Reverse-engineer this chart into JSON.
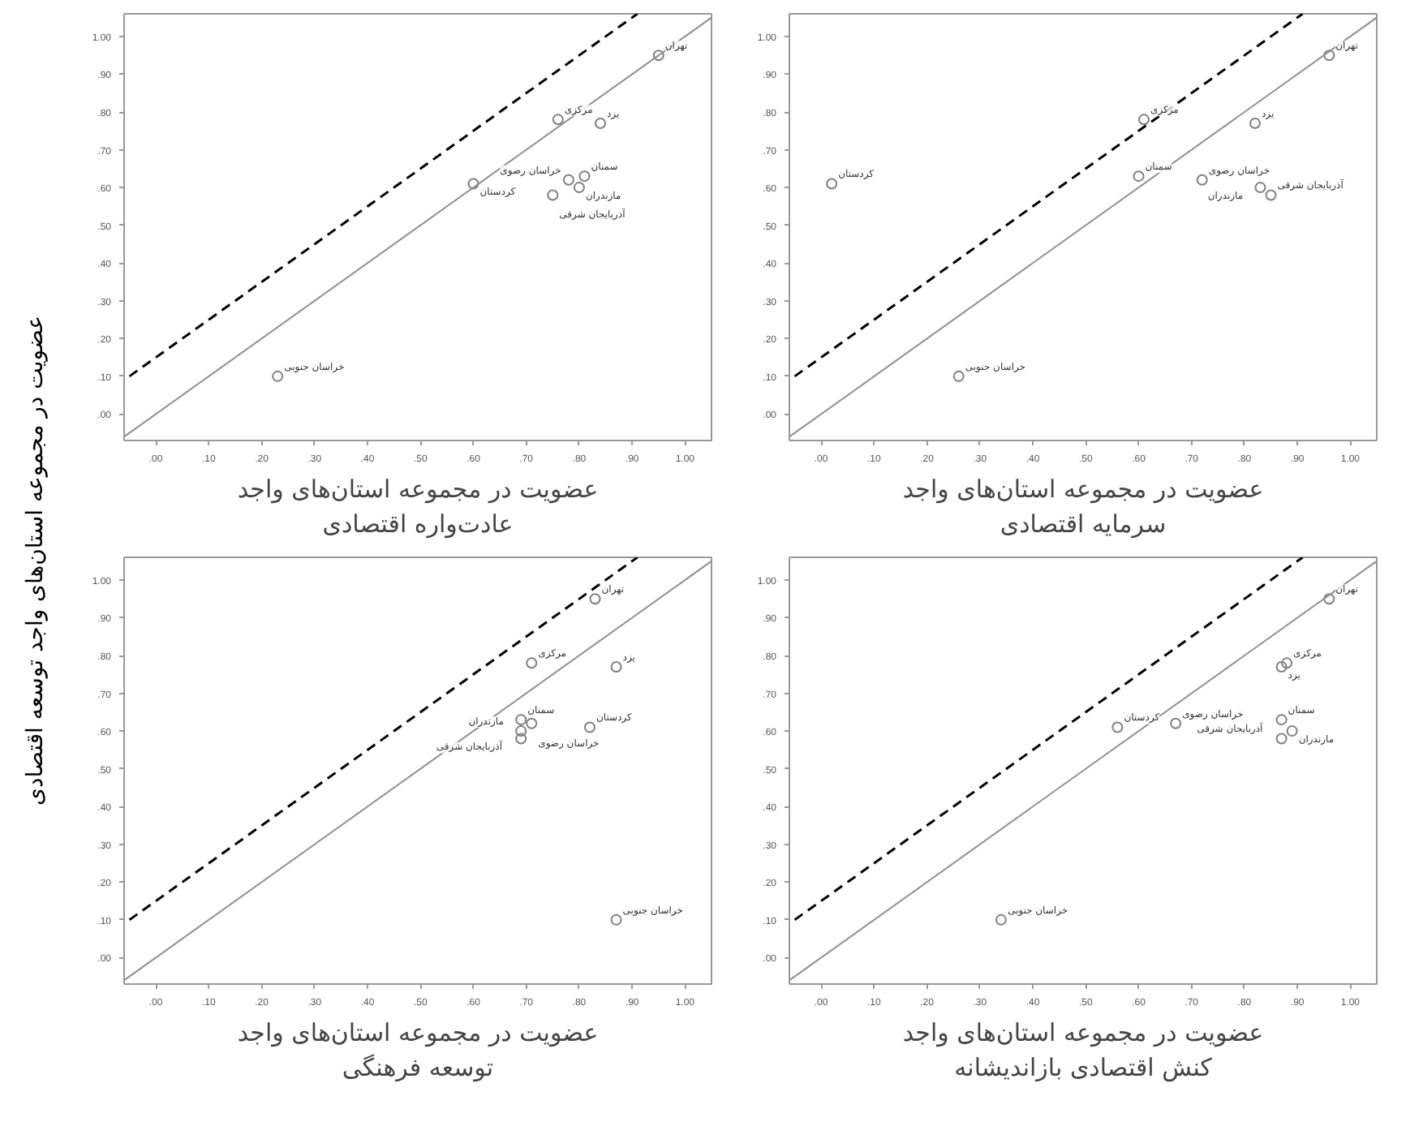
{
  "chart_data": [
    {
      "type": "scatter",
      "xlabel": "عضویت در مجموعه استان‌های واجد\nعادت‌واره اقتصادی",
      "ylabel": "عضویت در مجموعه استان‌های واجد توسعه اقتصادی",
      "xlim": [
        -0.06,
        1.05
      ],
      "ylim": [
        -0.07,
        1.06
      ],
      "marker": "circle",
      "grid": false,
      "xticks": [
        {
          "value": 0,
          "label": ".00"
        },
        {
          "value": 0.1,
          "label": ".10"
        },
        {
          "value": 0.2,
          "label": ".20"
        },
        {
          "value": 0.3,
          "label": ".30"
        },
        {
          "value": 0.4,
          "label": ".40"
        },
        {
          "value": 0.5,
          "label": ".50"
        },
        {
          "value": 0.6,
          "label": ".60"
        },
        {
          "value": 0.7,
          "label": ".70"
        },
        {
          "value": 0.8,
          "label": ".80"
        },
        {
          "value": 0.9,
          "label": ".90"
        },
        {
          "value": 1,
          "label": "1.00"
        }
      ],
      "yticks": [
        {
          "value": 0,
          "label": ".00"
        },
        {
          "value": 0.1,
          "label": ".10"
        },
        {
          "value": 0.2,
          "label": ".20"
        },
        {
          "value": 0.3,
          "label": ".30"
        },
        {
          "value": 0.4,
          "label": ".40"
        },
        {
          "value": 0.5,
          "label": ".50"
        },
        {
          "value": 0.6,
          "label": ".60"
        },
        {
          "value": 0.7,
          "label": ".70"
        },
        {
          "value": 0.8,
          "label": ".80"
        },
        {
          "value": 0.9,
          "label": ".90"
        },
        {
          "value": 1,
          "label": "1.00"
        }
      ],
      "series": [
        {
          "color": "#808080",
          "x": [
            0.95,
            0.76,
            0.84,
            0.81,
            0.78,
            0.6,
            0.8,
            0.75,
            0.23
          ],
          "values": [
            0.95,
            0.78,
            0.77,
            0.63,
            0.62,
            0.61,
            0.6,
            0.58,
            0.1
          ]
        },
        {
          "type": "line",
          "marker": "none",
          "color": "#909090",
          "line_style": "solid",
          "x": [
            -0.06,
            1.05
          ],
          "values": [
            -0.06,
            1.05
          ]
        },
        {
          "type": "line",
          "marker": "none",
          "color": "#000000",
          "line_style": "dashed",
          "x": [
            -0.05,
            0.91
          ],
          "values": [
            0.1,
            1.06
          ]
        }
      ],
      "annotations": [
        {
          "text": "تهران",
          "x": 0.95,
          "y": 0.95
        },
        {
          "text": "مرکزی",
          "x": 0.76,
          "y": 0.78
        },
        {
          "text": "یزد",
          "x": 0.84,
          "y": 0.77
        },
        {
          "text": "سمنان",
          "x": 0.81,
          "y": 0.63
        },
        {
          "text": "خراسان رضوی",
          "x": 0.78,
          "y": 0.62
        },
        {
          "text": "کردستان",
          "x": 0.6,
          "y": 0.61
        },
        {
          "text": "مازندران",
          "x": 0.8,
          "y": 0.6
        },
        {
          "text": "آذربایجان شرقی",
          "x": 0.75,
          "y": 0.58
        },
        {
          "text": "خراسان جنوبی",
          "x": 0.23,
          "y": 0.1
        }
      ]
    },
    {
      "type": "scatter",
      "xlabel": "عضویت در مجموعه استان‌های واجد\nسرمایه اقتصادی",
      "xlim": [
        -0.06,
        1.05
      ],
      "ylim": [
        -0.07,
        1.06
      ],
      "marker": "circle",
      "grid": false,
      "xticks": [
        {
          "value": 0,
          "label": ".00"
        },
        {
          "value": 0.1,
          "label": ".10"
        },
        {
          "value": 0.2,
          "label": ".20"
        },
        {
          "value": 0.3,
          "label": ".30"
        },
        {
          "value": 0.4,
          "label": ".40"
        },
        {
          "value": 0.5,
          "label": ".50"
        },
        {
          "value": 0.6,
          "label": ".60"
        },
        {
          "value": 0.7,
          "label": ".70"
        },
        {
          "value": 0.8,
          "label": ".80"
        },
        {
          "value": 0.9,
          "label": ".90"
        },
        {
          "value": 1,
          "label": "1.00"
        }
      ],
      "yticks": [
        {
          "value": 0,
          "label": ".00"
        },
        {
          "value": 0.1,
          "label": ".10"
        },
        {
          "value": 0.2,
          "label": ".20"
        },
        {
          "value": 0.3,
          "label": ".30"
        },
        {
          "value": 0.4,
          "label": ".40"
        },
        {
          "value": 0.5,
          "label": ".50"
        },
        {
          "value": 0.6,
          "label": ".60"
        },
        {
          "value": 0.7,
          "label": ".70"
        },
        {
          "value": 0.8,
          "label": ".80"
        },
        {
          "value": 0.9,
          "label": ".90"
        },
        {
          "value": 1,
          "label": "1.00"
        }
      ],
      "series": [
        {
          "color": "#808080",
          "x": [
            0.96,
            0.61,
            0.82,
            0.6,
            0.72,
            0.02,
            0.83,
            0.85,
            0.26
          ],
          "values": [
            0.95,
            0.78,
            0.77,
            0.63,
            0.62,
            0.61,
            0.6,
            0.58,
            0.1
          ]
        },
        {
          "type": "line",
          "marker": "none",
          "color": "#909090",
          "line_style": "solid",
          "x": [
            -0.06,
            1.05
          ],
          "values": [
            -0.06,
            1.05
          ]
        },
        {
          "type": "line",
          "marker": "none",
          "color": "#000000",
          "line_style": "dashed",
          "x": [
            -0.05,
            0.91
          ],
          "values": [
            0.1,
            1.06
          ]
        }
      ],
      "annotations": [
        {
          "text": "تهران",
          "x": 0.96,
          "y": 0.95
        },
        {
          "text": "مرکزی",
          "x": 0.61,
          "y": 0.78
        },
        {
          "text": "یزد",
          "x": 0.82,
          "y": 0.77
        },
        {
          "text": "سمنان",
          "x": 0.6,
          "y": 0.63
        },
        {
          "text": "خراسان رضوی",
          "x": 0.72,
          "y": 0.62
        },
        {
          "text": "کردستان",
          "x": 0.02,
          "y": 0.61
        },
        {
          "text": "مازندران",
          "x": 0.83,
          "y": 0.6
        },
        {
          "text": "آذربایجان شرقی",
          "x": 0.85,
          "y": 0.58
        },
        {
          "text": "خراسان جنوبی",
          "x": 0.26,
          "y": 0.1
        }
      ]
    },
    {
      "type": "scatter",
      "xlabel": "عضویت در مجموعه استان‌های واجد\nتوسعه فرهنگی",
      "xlim": [
        -0.06,
        1.05
      ],
      "ylim": [
        -0.07,
        1.06
      ],
      "marker": "circle",
      "grid": false,
      "xticks": [
        {
          "value": 0,
          "label": ".00"
        },
        {
          "value": 0.1,
          "label": ".10"
        },
        {
          "value": 0.2,
          "label": ".20"
        },
        {
          "value": 0.3,
          "label": ".30"
        },
        {
          "value": 0.4,
          "label": ".40"
        },
        {
          "value": 0.5,
          "label": ".50"
        },
        {
          "value": 0.6,
          "label": ".60"
        },
        {
          "value": 0.7,
          "label": ".70"
        },
        {
          "value": 0.8,
          "label": ".80"
        },
        {
          "value": 0.9,
          "label": ".90"
        },
        {
          "value": 1,
          "label": "1.00"
        }
      ],
      "yticks": [
        {
          "value": 0,
          "label": ".00"
        },
        {
          "value": 0.1,
          "label": ".10"
        },
        {
          "value": 0.2,
          "label": ".20"
        },
        {
          "value": 0.3,
          "label": ".30"
        },
        {
          "value": 0.4,
          "label": ".40"
        },
        {
          "value": 0.5,
          "label": ".50"
        },
        {
          "value": 0.6,
          "label": ".60"
        },
        {
          "value": 0.7,
          "label": ".70"
        },
        {
          "value": 0.8,
          "label": ".80"
        },
        {
          "value": 0.9,
          "label": ".90"
        },
        {
          "value": 1,
          "label": "1.00"
        }
      ],
      "series": [
        {
          "color": "#808080",
          "x": [
            0.83,
            0.71,
            0.87,
            0.69,
            0.71,
            0.82,
            0.69,
            0.69,
            0.87
          ],
          "values": [
            0.95,
            0.78,
            0.77,
            0.63,
            0.62,
            0.61,
            0.6,
            0.58,
            0.1
          ]
        },
        {
          "type": "line",
          "marker": "none",
          "color": "#909090",
          "line_style": "solid",
          "x": [
            -0.06,
            1.05
          ],
          "values": [
            -0.06,
            1.05
          ]
        },
        {
          "type": "line",
          "marker": "none",
          "color": "#000000",
          "line_style": "dashed",
          "x": [
            -0.05,
            0.91
          ],
          "values": [
            0.1,
            1.06
          ]
        }
      ],
      "annotations": [
        {
          "text": "تهران",
          "x": 0.83,
          "y": 0.95
        },
        {
          "text": "مرکزی",
          "x": 0.71,
          "y": 0.78
        },
        {
          "text": "یزد",
          "x": 0.87,
          "y": 0.77
        },
        {
          "text": "سمنان",
          "x": 0.69,
          "y": 0.63
        },
        {
          "text": "خراسان رضوی",
          "x": 0.71,
          "y": 0.62
        },
        {
          "text": "کردستان",
          "x": 0.82,
          "y": 0.61
        },
        {
          "text": "مازندران",
          "x": 0.69,
          "y": 0.6
        },
        {
          "text": "آذربایجان شرقی",
          "x": 0.69,
          "y": 0.58
        },
        {
          "text": "خراسان جنوبی",
          "x": 0.87,
          "y": 0.1
        }
      ]
    },
    {
      "type": "scatter",
      "xlabel": "عضویت در مجموعه استان‌های واجد\nکنش اقتصادی بازاندیشانه",
      "xlim": [
        -0.06,
        1.05
      ],
      "ylim": [
        -0.07,
        1.06
      ],
      "marker": "circle",
      "grid": false,
      "xticks": [
        {
          "value": 0,
          "label": ".00"
        },
        {
          "value": 0.1,
          "label": ".10"
        },
        {
          "value": 0.2,
          "label": ".20"
        },
        {
          "value": 0.3,
          "label": ".30"
        },
        {
          "value": 0.4,
          "label": ".40"
        },
        {
          "value": 0.5,
          "label": ".50"
        },
        {
          "value": 0.6,
          "label": ".60"
        },
        {
          "value": 0.7,
          "label": ".70"
        },
        {
          "value": 0.8,
          "label": ".80"
        },
        {
          "value": 0.9,
          "label": ".90"
        },
        {
          "value": 1,
          "label": "1.00"
        }
      ],
      "yticks": [
        {
          "value": 0,
          "label": ".00"
        },
        {
          "value": 0.1,
          "label": ".10"
        },
        {
          "value": 0.2,
          "label": ".20"
        },
        {
          "value": 0.3,
          "label": ".30"
        },
        {
          "value": 0.4,
          "label": ".40"
        },
        {
          "value": 0.5,
          "label": ".50"
        },
        {
          "value": 0.6,
          "label": ".60"
        },
        {
          "value": 0.7,
          "label": ".70"
        },
        {
          "value": 0.8,
          "label": ".80"
        },
        {
          "value": 0.9,
          "label": ".90"
        },
        {
          "value": 1,
          "label": "1.00"
        }
      ],
      "series": [
        {
          "color": "#808080",
          "x": [
            0.96,
            0.88,
            0.87,
            0.87,
            0.67,
            0.56,
            0.89,
            0.87,
            0.34
          ],
          "values": [
            0.95,
            0.78,
            0.77,
            0.63,
            0.62,
            0.61,
            0.6,
            0.58,
            0.1
          ]
        },
        {
          "type": "line",
          "marker": "none",
          "color": "#909090",
          "line_style": "solid",
          "x": [
            -0.06,
            1.05
          ],
          "values": [
            -0.06,
            1.05
          ]
        },
        {
          "type": "line",
          "marker": "none",
          "color": "#000000",
          "line_style": "dashed",
          "x": [
            -0.05,
            0.91
          ],
          "values": [
            0.1,
            1.06
          ]
        }
      ],
      "annotations": [
        {
          "text": "تهران",
          "x": 0.96,
          "y": 0.95
        },
        {
          "text": "مرکزی",
          "x": 0.88,
          "y": 0.78
        },
        {
          "text": "یزد",
          "x": 0.87,
          "y": 0.77
        },
        {
          "text": "سمنان",
          "x": 0.87,
          "y": 0.63
        },
        {
          "text": "خراسان رضوی",
          "x": 0.67,
          "y": 0.62
        },
        {
          "text": "کردستان",
          "x": 0.56,
          "y": 0.61
        },
        {
          "text": "مازندران",
          "x": 0.89,
          "y": 0.6
        },
        {
          "text": "آذربایجان شرقی",
          "x": 0.87,
          "y": 0.58
        },
        {
          "text": "خراسان جنوبی",
          "x": 0.34,
          "y": 0.1
        }
      ]
    }
  ]
}
